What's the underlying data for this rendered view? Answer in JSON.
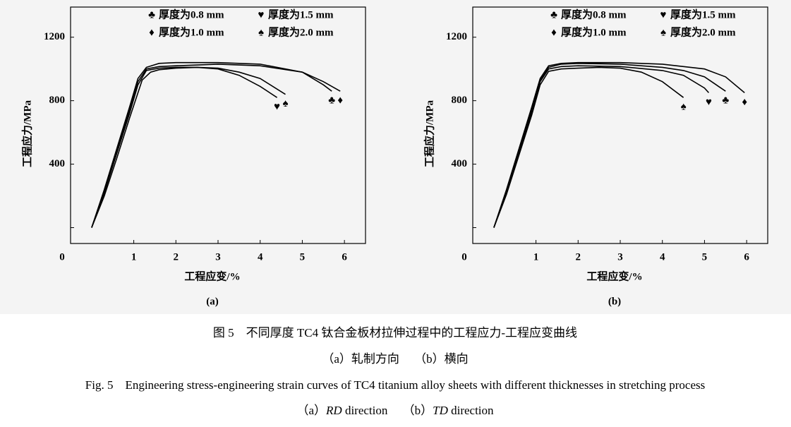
{
  "chart_data": [
    {
      "type": "line",
      "panel_label": "(a)",
      "xlabel": "工程应变/%",
      "ylabel": "工程应力/MPa",
      "origin_label": "0",
      "xlim": [
        -0.5,
        6.5
      ],
      "ylim": [
        -100,
        1390
      ],
      "xticks": [
        1,
        2,
        3,
        4,
        5,
        6
      ],
      "yticks": [
        {
          "value": 0,
          "label": null
        },
        400,
        800,
        1200
      ],
      "series": [
        {
          "name": "厚度为0.8 mm",
          "marker": "♣",
          "color": "#000000",
          "x": [
            0,
            0.3,
            0.6,
            0.9,
            1.1,
            1.3,
            1.6,
            2,
            3,
            4,
            5,
            5.5,
            5.7
          ],
          "values": [
            0,
            240,
            500,
            760,
            940,
            1010,
            1035,
            1040,
            1040,
            1030,
            980,
            900,
            860
          ]
        },
        {
          "name": "厚度为1.5 mm",
          "marker": "♥",
          "color": "#000000",
          "x": [
            0,
            0.3,
            0.6,
            0.9,
            1.1,
            1.3,
            1.6,
            2,
            2.5,
            3,
            3.5,
            4,
            4.4
          ],
          "values": [
            0,
            220,
            470,
            720,
            900,
            990,
            1005,
            1010,
            1010,
            1000,
            960,
            890,
            820
          ]
        },
        {
          "name": "厚度为1.0 mm",
          "marker": "♦",
          "color": "#000000",
          "x": [
            0,
            0.3,
            0.6,
            0.9,
            1.1,
            1.3,
            1.6,
            2,
            3,
            4,
            5,
            5.5,
            5.9
          ],
          "values": [
            0,
            230,
            490,
            740,
            920,
            1000,
            1015,
            1020,
            1030,
            1020,
            980,
            920,
            860
          ]
        },
        {
          "name": "厚度为2.0 mm",
          "marker": "♠",
          "color": "#000000",
          "x": [
            0,
            0.3,
            0.6,
            0.9,
            1.2,
            1.4,
            1.6,
            2,
            2.5,
            3,
            3.5,
            4,
            4.6
          ],
          "values": [
            0,
            200,
            440,
            690,
            930,
            980,
            995,
            1005,
            1010,
            1005,
            980,
            940,
            840
          ]
        }
      ]
    },
    {
      "type": "line",
      "panel_label": "(b)",
      "xlabel": "工程应变/%",
      "ylabel": "工程应力/MPa",
      "origin_label": "0",
      "xlim": [
        -0.5,
        6.5
      ],
      "ylim": [
        -100,
        1390
      ],
      "xticks": [
        1,
        2,
        3,
        4,
        5,
        6
      ],
      "yticks": [
        {
          "value": 0,
          "label": null
        },
        400,
        800,
        1200
      ],
      "series": [
        {
          "name": "厚度为0.8 mm",
          "marker": "♣",
          "color": "#000000",
          "x": [
            0,
            0.3,
            0.6,
            0.9,
            1.1,
            1.3,
            1.6,
            2,
            3,
            4,
            4.5,
            5,
            5.5
          ],
          "values": [
            0,
            230,
            490,
            750,
            930,
            1010,
            1030,
            1035,
            1030,
            1010,
            990,
            950,
            860
          ]
        },
        {
          "name": "厚度为1.5 mm",
          "marker": "♥",
          "color": "#000000",
          "x": [
            0,
            0.3,
            0.6,
            0.9,
            1.1,
            1.3,
            1.6,
            2,
            3,
            4,
            4.5,
            5,
            5.1
          ],
          "values": [
            0,
            220,
            480,
            730,
            920,
            1000,
            1015,
            1020,
            1015,
            990,
            960,
            880,
            850
          ]
        },
        {
          "name": "厚度为1.0 mm",
          "marker": "♦",
          "color": "#000000",
          "x": [
            0,
            0.3,
            0.6,
            0.9,
            1.1,
            1.3,
            1.6,
            2,
            3,
            4,
            5,
            5.5,
            5.95
          ],
          "values": [
            0,
            240,
            500,
            760,
            940,
            1020,
            1035,
            1040,
            1040,
            1030,
            1000,
            950,
            850
          ]
        },
        {
          "name": "厚度为2.0 mm",
          "marker": "♠",
          "color": "#000000",
          "x": [
            0,
            0.3,
            0.6,
            0.9,
            1.1,
            1.3,
            1.6,
            2,
            2.5,
            3,
            3.5,
            4,
            4.5
          ],
          "values": [
            0,
            210,
            460,
            710,
            900,
            985,
            1000,
            1005,
            1010,
            1005,
            980,
            920,
            820
          ]
        }
      ]
    }
  ],
  "caption": {
    "zh_title": "图 5　不同厚度 TC4 钛合金板材拉伸过程中的工程应力-工程应变曲线",
    "zh_sub": "（a）轧制方向　 （b）横向",
    "en_title": "Fig. 5　Engineering stress-engineering strain curves of TC4 titanium alloy sheets with different thicknesses in stretching process",
    "en_sub": [
      "（a）",
      "RD",
      " direction　 （b）",
      "TD",
      " direction"
    ]
  }
}
